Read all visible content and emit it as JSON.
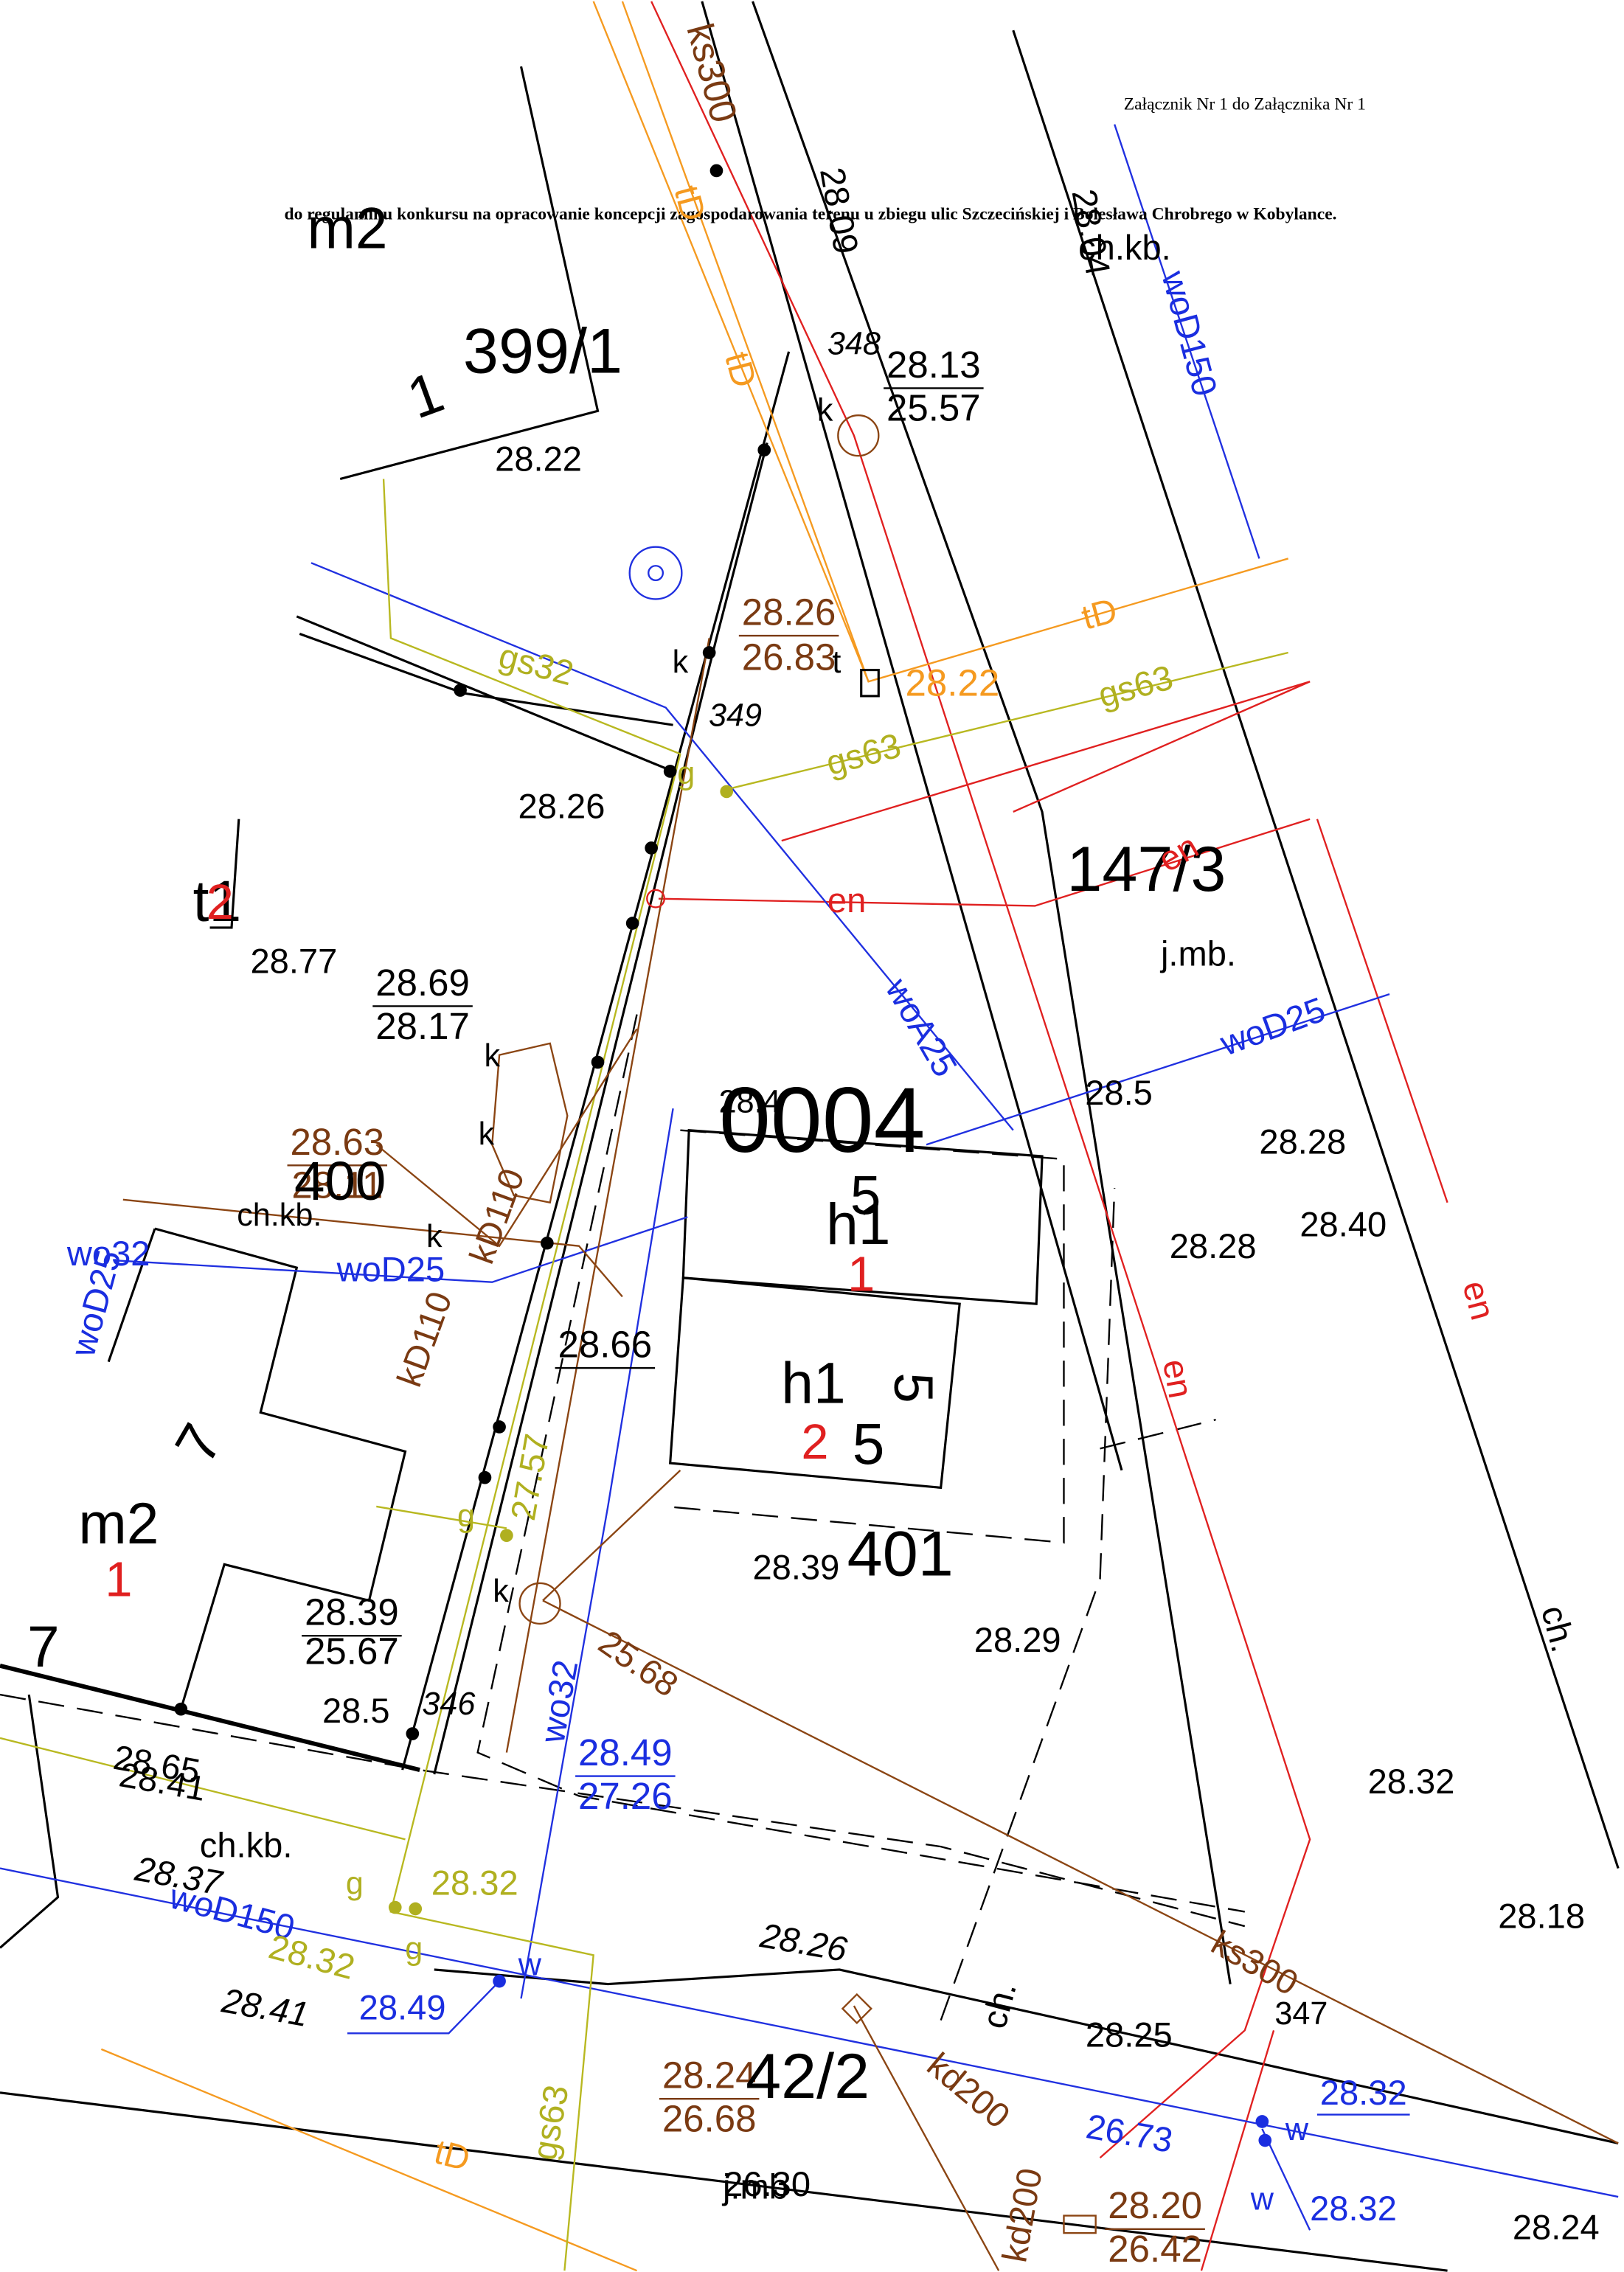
{
  "header": {
    "line1": "Załącznik Nr 1 do Załącznika Nr 1",
    "line2": "do regulaminu konkursu na opracowanie koncepcji zagospodarowania terenu u zbiegu ulic Szczecińskiej i Bolesława Chrobrego w Kobylance."
  },
  "labels": [
    "m2",
    "1",
    "399/1",
    "28.22",
    "ks300",
    "tD",
    "28.09",
    "ch.kb.",
    "28.04",
    "woD150",
    "348",
    "28.13",
    "25.57",
    "k",
    "tD",
    "28.26",
    "26.83",
    "t",
    "k",
    "349",
    "gs32",
    "tD",
    "28.22",
    "gs63",
    "gs63",
    "g",
    "28.26",
    "147/3",
    "en",
    "en",
    "t1",
    "2",
    "28.77",
    "28.69",
    "28.17",
    "j.mb.",
    "woA25",
    "woD25",
    "28.5",
    "k",
    "k",
    "0004",
    "28.4",
    "28.28",
    "28.63",
    "28.11",
    "400",
    "kD110",
    "5",
    "h1",
    "28.40",
    "ch.kb.",
    "k",
    "wo32",
    "woD25",
    "woD25",
    "1",
    "28.28",
    "en",
    "kD110",
    "28.66",
    "h1",
    "5",
    "en",
    "7",
    "2",
    "5",
    "m2",
    "1",
    "27.57",
    "g",
    "401",
    "28.39",
    "28.39",
    "25.67",
    "k",
    "7",
    "25.68",
    "28.29",
    "ch.",
    "28.5",
    "346",
    "wo32",
    "28.49",
    "27.26",
    "28.65",
    "28.41",
    "28.32",
    "ch.kb.",
    "28.37",
    "woD150",
    "g",
    "28.32",
    "28.18",
    "28.26",
    "g",
    "28.32",
    "w",
    "ch.",
    "ks300",
    "347",
    "28.49",
    "28.41",
    "28.25",
    "28.24",
    "26.68",
    "42/2",
    "kd200",
    "28.32",
    "w",
    "26.73",
    "gs63",
    "tD",
    "26.30",
    "j.mb",
    "w",
    "28.32",
    "kd200",
    "28.20",
    "26.42",
    "28.24"
  ]
}
